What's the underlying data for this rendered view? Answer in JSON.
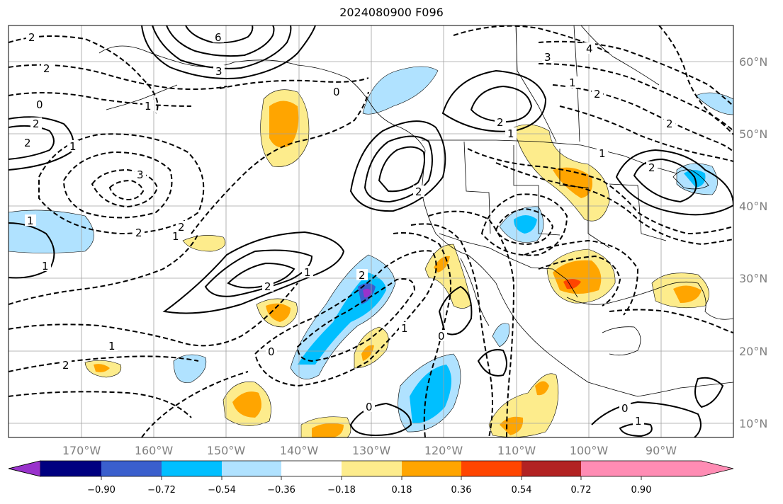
{
  "title": "2024080900 F096",
  "map": {
    "lat_labels": [
      "60°N",
      "50°N",
      "40°N",
      "30°N",
      "20°N",
      "10°N"
    ],
    "lon_labels": [
      "170°W",
      "160°W",
      "150°W",
      "140°W",
      "130°W",
      "120°W",
      "110°W",
      "100°W",
      "90°W"
    ],
    "contour_labels": [
      "2",
      "6",
      "3",
      "2",
      "0",
      "1",
      "0",
      "2",
      "2",
      "1",
      "1",
      "3",
      "2",
      "1",
      "2",
      "2",
      "1",
      "0",
      "1",
      "2",
      "0",
      "2",
      "1",
      "0",
      "1",
      "2",
      "3",
      "4",
      "2",
      "1",
      "1",
      "2",
      "2",
      "1",
      "2",
      "0",
      "1"
    ],
    "fill_colors": {
      "neg_090": "#9932cc",
      "neg_072": "#000080",
      "neg_054": "#3a5fcd",
      "neg_036": "#00bfff",
      "neg_018": "#b0e2ff",
      "zero": "#ffffff",
      "pos_018": "#fdec8c",
      "pos_036": "#ffa500",
      "pos_054": "#ff4500",
      "pos_072": "#b22222",
      "pos_090": "#ff8cb4"
    }
  },
  "colorbar": {
    "ticks": [
      "−0.90",
      "−0.72",
      "−0.54",
      "−0.36",
      "−0.18",
      "0.18",
      "0.36",
      "0.54",
      "0.72",
      "0.90"
    ],
    "colors": [
      "#9932cc",
      "#000080",
      "#3a5fcd",
      "#00bfff",
      "#b0e2ff",
      "#ffffff",
      "#fdec8c",
      "#ffa500",
      "#ff4500",
      "#b22222",
      "#ff8cb4"
    ]
  }
}
